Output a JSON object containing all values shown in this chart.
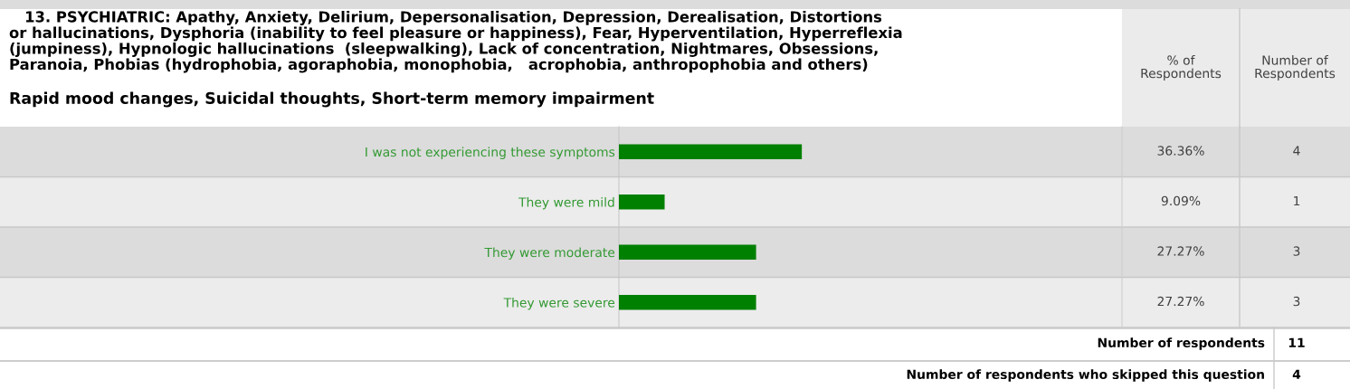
{
  "chart_data": {
    "type": "bar",
    "orientation": "horizontal",
    "title": "   13. PSYCHIATRIC: Apathy, Anxiety, Delirium, Depersonalisation, Depression, Derealisation, Distortions\nor hallucinations, Dysphoria (inability to feel pleasure or happiness), Fear, Hyperventilation, Hyperreflexia\n(jumpiness), Hypnologic hallucinations  (sleepwalking), Lack of concentration, Nightmares, Obsessions,\nParanoia, Phobias (hydrophobia, agoraphobia, monophobia,   acrophobia, anthropophobia and others)",
    "subtitle": "Rapid mood changes, Suicidal thoughts, Short-term memory impairment",
    "categories": [
      "I was not experiencing these symptoms",
      "They were mild",
      "They were moderate",
      "They were severe"
    ],
    "values": [
      36.36,
      9.09,
      27.27,
      27.27
    ],
    "value_labels": [
      "36.36%",
      "9.09%",
      "27.27%",
      "27.27%"
    ],
    "color": "#008000",
    "xlim": [
      0,
      100
    ],
    "tick_labels": "y",
    "grid": false,
    "legend": false,
    "annotations": [
      "% of\nRespondents",
      "Number of\nRespondents",
      "4",
      "1",
      "3",
      "3",
      "Number of respondents",
      "11",
      "Number of respondents who skipped this question",
      "4"
    ]
  }
}
